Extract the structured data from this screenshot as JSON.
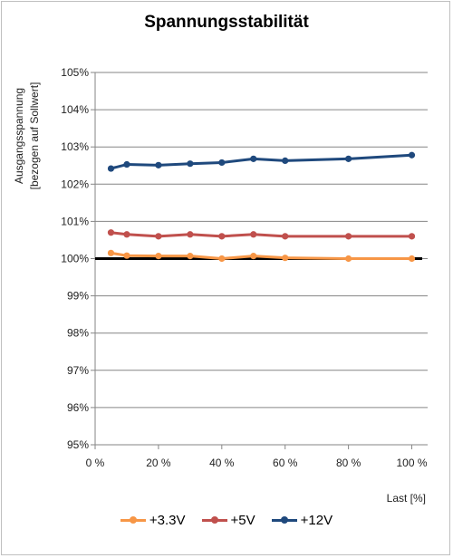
{
  "chart_data": {
    "type": "line",
    "title": "Spannungsstabilität",
    "ylabel": "Ausgangsspannung",
    "ylabel_sub": "[bezogen auf Sollwert]",
    "xlabel": "Last [%]",
    "xlim": [
      0,
      105
    ],
    "ylim": [
      95,
      105
    ],
    "x_ticks": [
      "0 %",
      "20 %",
      "40 %",
      "60 %",
      "80 %",
      "100 %"
    ],
    "x_tick_values": [
      0,
      20,
      40,
      60,
      80,
      100
    ],
    "y_ticks": [
      "95%",
      "96%",
      "97%",
      "98%",
      "99%",
      "100%",
      "101%",
      "102%",
      "103%",
      "104%",
      "105%"
    ],
    "y_tick_values": [
      95,
      96,
      97,
      98,
      99,
      100,
      101,
      102,
      103,
      104,
      105
    ],
    "grid": "horizontal",
    "legend_position": "bottom",
    "reference_line": 100,
    "series": [
      {
        "name": "+3.3V",
        "color": "#f79646",
        "x": [
          5,
          10,
          20,
          30,
          40,
          50,
          60,
          80,
          100
        ],
        "values": [
          100.15,
          100.08,
          100.07,
          100.07,
          100.0,
          100.07,
          100.02,
          100.0,
          100.0
        ]
      },
      {
        "name": "+5V",
        "color": "#c0504d",
        "x": [
          5,
          10,
          20,
          30,
          40,
          50,
          60,
          80,
          100
        ],
        "values": [
          100.7,
          100.65,
          100.6,
          100.65,
          100.6,
          100.65,
          100.6,
          100.6,
          100.6
        ]
      },
      {
        "name": "+12V",
        "color": "#1f497d",
        "x": [
          5,
          10,
          20,
          30,
          40,
          50,
          60,
          80,
          100
        ],
        "values": [
          102.42,
          102.53,
          102.51,
          102.55,
          102.58,
          102.68,
          102.63,
          102.68,
          102.78
        ]
      }
    ]
  }
}
